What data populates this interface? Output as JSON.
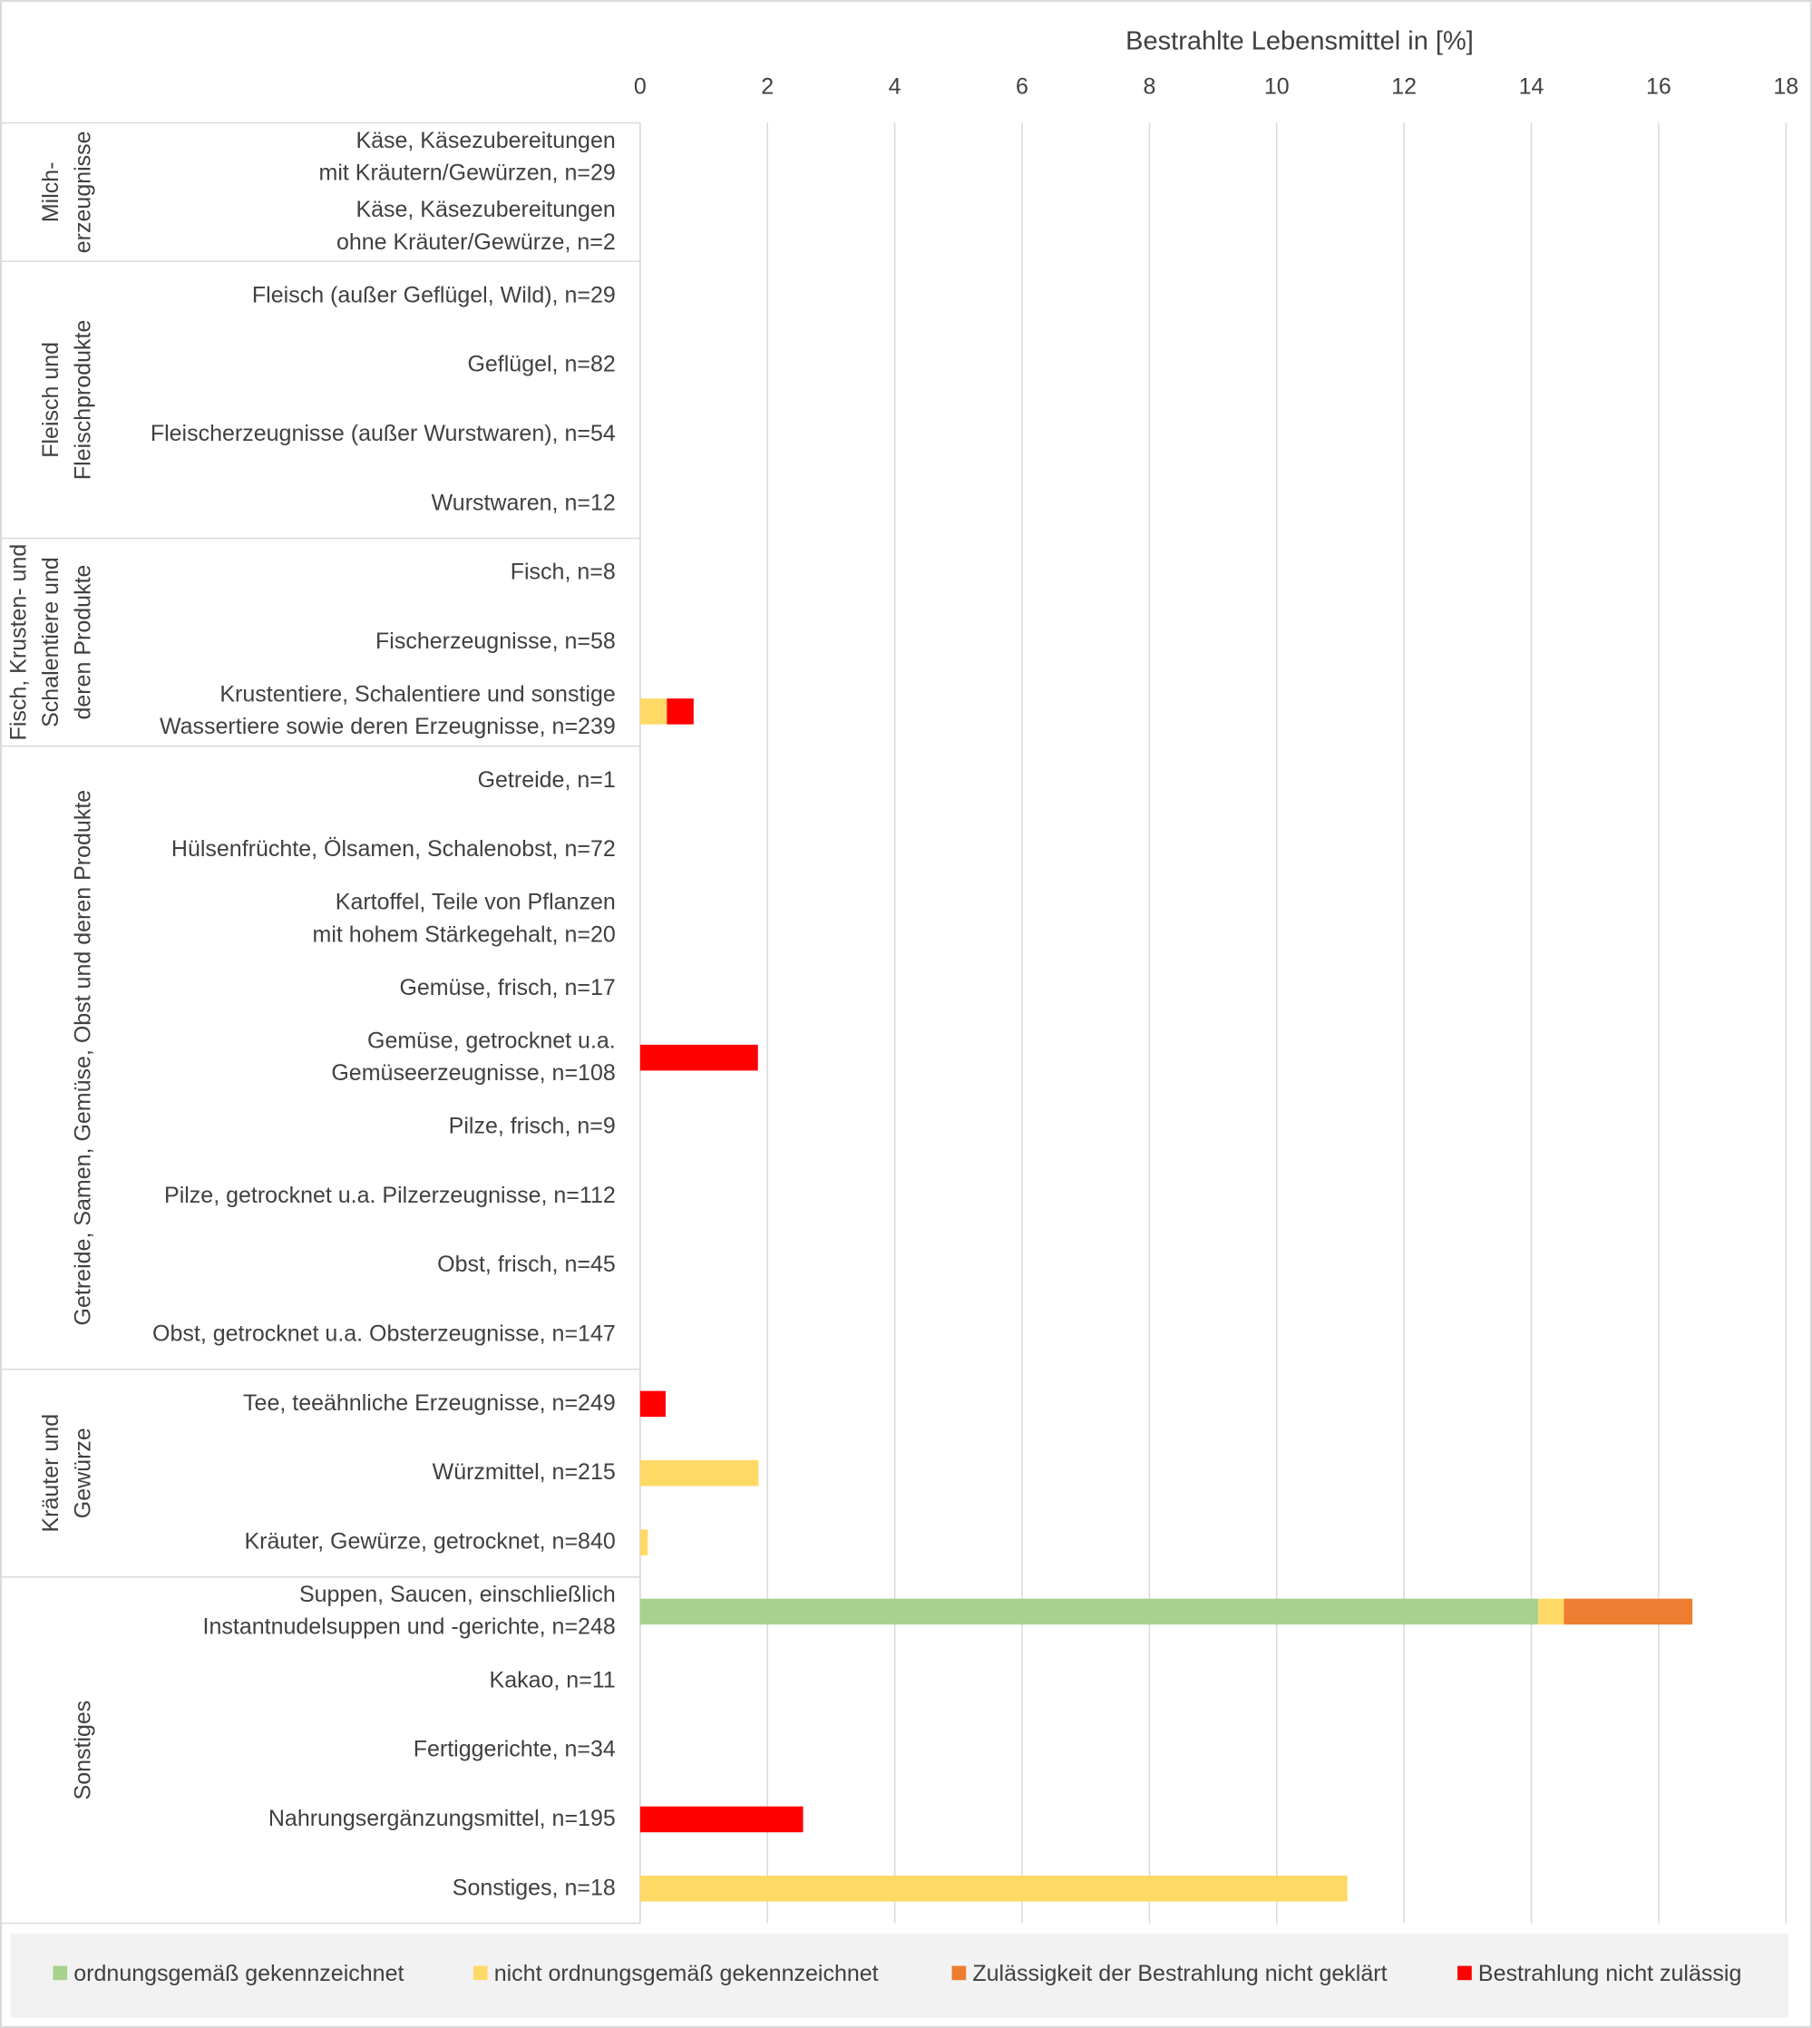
{
  "chart_data": {
    "type": "stacked-barh",
    "title": "Bestrahlte Lebensmittel in [%]",
    "xlim": [
      0,
      18
    ],
    "xticks": [
      0,
      2,
      4,
      6,
      8,
      10,
      12,
      14,
      16,
      18
    ],
    "grid": true,
    "legend": "bottom",
    "groups": [
      {
        "label": "Milch-\nerzeugnisse",
        "categories": [
          "Käse, Käsezubereitungen\nmit Kräutern/Gewürzen, n=29",
          "Käse, Käsezubereitungen\nohne Kräuter/Gewürze, n=2"
        ]
      },
      {
        "label": "Fleisch und\nFleischprodukte",
        "categories": [
          "Fleisch (außer Geflügel, Wild), n=29",
          "Geflügel, n=82",
          "Fleischerzeugnisse (außer Wurstwaren), n=54",
          "Wurstwaren, n=12"
        ]
      },
      {
        "label": "Fisch, Krusten- und\nSchalentiere und\nderen Produkte",
        "categories": [
          "Fisch, n=8",
          "Fischerzeugnisse, n=58",
          "Krustentiere, Schalentiere und sonstige\nWassertiere sowie deren Erzeugnisse, n=239"
        ]
      },
      {
        "label": "Getreide, Samen, Gemüse, Obst und deren Produkte",
        "categories": [
          "Getreide, n=1",
          "Hülsenfrüchte, Ölsamen, Schalenobst, n=72",
          "Kartoffel, Teile von Pflanzen\nmit hohem Stärkegehalt, n=20",
          "Gemüse, frisch, n=17",
          "Gemüse, getrocknet u.a.\nGemüseerzeugnisse, n=108",
          "Pilze, frisch, n=9",
          "Pilze, getrocknet u.a. Pilzerzeugnisse, n=112",
          "Obst, frisch, n=45",
          "Obst, getrocknet u.a. Obsterzeugnisse, n=147"
        ]
      },
      {
        "label": "Kräuter und\nGewürze",
        "categories": [
          "Tee, teeähnliche Erzeugnisse, n=249",
          "Würzmittel, n=215",
          "Kräuter, Gewürze, getrocknet, n=840"
        ]
      },
      {
        "label": "Sonstiges",
        "categories": [
          "Suppen, Saucen, einschließlich\nInstantnudelsuppen  und -gerichte, n=248",
          "Kakao, n=11",
          "Fertiggerichte, n=34",
          "Nahrungsergänzungsmittel, n=195",
          "Sonstiges, n=18"
        ]
      }
    ],
    "series": [
      {
        "name": "ordnungsgemäß gekennzeichnet",
        "color": "#a9d18e",
        "values": [
          0,
          0,
          0,
          0,
          0,
          0,
          0,
          0,
          0,
          0,
          0,
          0,
          0,
          0,
          0,
          0,
          0,
          0,
          0,
          0,
          0,
          14.11,
          0,
          0,
          0,
          0
        ]
      },
      {
        "name": "nicht ordnungsgemäß gekennzeichnet",
        "color": "#ffd966",
        "values": [
          0,
          0,
          0,
          0,
          0,
          0,
          0,
          0,
          0.42,
          0,
          0,
          0,
          0,
          0,
          0,
          0,
          0,
          0,
          0,
          1.86,
          0.12,
          0.4,
          0,
          0,
          0,
          11.11
        ]
      },
      {
        "name": "Zulässigkeit der Bestrahlung nicht geklärt",
        "color": "#ed7d31",
        "values": [
          0,
          0,
          0,
          0,
          0,
          0,
          0,
          0,
          0,
          0,
          0,
          0,
          0,
          0,
          0,
          0,
          0,
          0,
          0,
          0,
          0,
          2.02,
          0,
          0,
          0,
          0
        ]
      },
      {
        "name": "Bestrahlung nicht zulässig",
        "color": "#ff0000",
        "values": [
          0,
          0,
          0,
          0,
          0,
          0,
          0,
          0,
          0.42,
          0,
          0,
          0,
          0,
          1.85,
          0,
          0,
          0,
          0,
          0.4,
          0,
          0,
          0,
          0,
          0,
          2.56,
          0
        ]
      }
    ]
  }
}
